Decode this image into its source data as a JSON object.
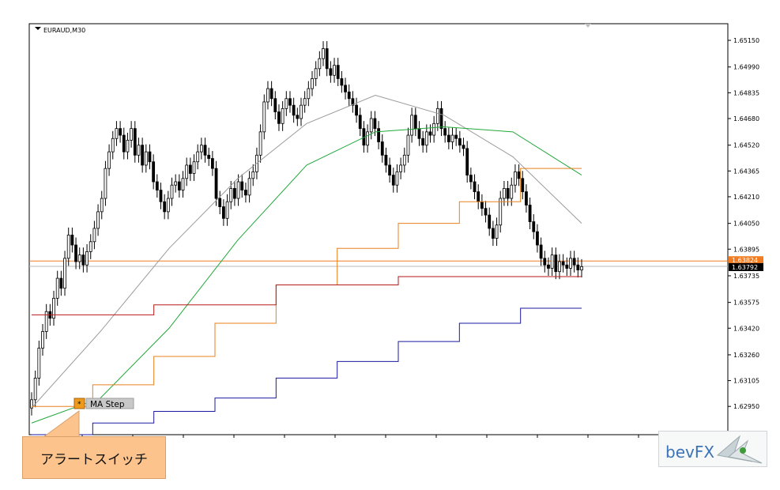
{
  "chart_data": {
    "type": "candlestick",
    "symbol": "EURAUD,M30",
    "y_ticks": [
      "1.65150",
      "1.64990",
      "1.64835",
      "1.64680",
      "1.64520",
      "1.64365",
      "1.64210",
      "1.64050",
      "1.63895",
      "1.63735",
      "1.63575",
      "1.63420",
      "1.63260",
      "1.63105",
      "1.62950"
    ],
    "ylim": [
      1.6278,
      1.6525
    ],
    "price_labels": [
      {
        "text": "1.63824",
        "value": 1.63824,
        "color": "#f47c20"
      },
      {
        "text": "1.63792",
        "value": 1.63792,
        "color": "#000000"
      }
    ],
    "candles_close": [
      1.6299,
      1.6312,
      1.633,
      1.634,
      1.6352,
      1.6348,
      1.636,
      1.6372,
      1.6366,
      1.6384,
      1.6398,
      1.6392,
      1.6382,
      1.6386,
      1.638,
      1.6388,
      1.6394,
      1.6402,
      1.6412,
      1.642,
      1.6438,
      1.6448,
      1.6456,
      1.6462,
      1.6458,
      1.6448,
      1.6455,
      1.6462,
      1.6446,
      1.6452,
      1.644,
      1.6448,
      1.6442,
      1.643,
      1.6425,
      1.6418,
      1.6412,
      1.642,
      1.6428,
      1.643,
      1.6425,
      1.6432,
      1.644,
      1.6435,
      1.6442,
      1.6448,
      1.6452,
      1.6446,
      1.6444,
      1.6438,
      1.642,
      1.6415,
      1.6408,
      1.6418,
      1.6426,
      1.642,
      1.643,
      1.6425,
      1.6422,
      1.6432,
      1.6436,
      1.6446,
      1.646,
      1.6478,
      1.6486,
      1.648,
      1.6472,
      1.6465,
      1.6474,
      1.648,
      1.6476,
      1.647,
      1.6468,
      1.6476,
      1.648,
      1.6486,
      1.6492,
      1.6498,
      1.6504,
      1.651,
      1.6498,
      1.6494,
      1.65,
      1.6492,
      1.6488,
      1.6484,
      1.648,
      1.6476,
      1.647,
      1.6462,
      1.6452,
      1.646,
      1.6468,
      1.6462,
      1.6454,
      1.6446,
      1.644,
      1.6434,
      1.6428,
      1.6436,
      1.644,
      1.6446,
      1.6458,
      1.647,
      1.6462,
      1.6456,
      1.6452,
      1.646,
      1.6458,
      1.6465,
      1.6474,
      1.6462,
      1.6458,
      1.6454,
      1.6458,
      1.6456,
      1.6452,
      1.645,
      1.6434,
      1.643,
      1.6424,
      1.6418,
      1.6414,
      1.641,
      1.6402,
      1.6396,
      1.6404,
      1.642,
      1.6426,
      1.642,
      1.6428,
      1.6436,
      1.6432,
      1.6424,
      1.6416,
      1.6406,
      1.64,
      1.6392,
      1.6384,
      1.638,
      1.6378,
      1.6386,
      1.6376,
      1.6382,
      1.638,
      1.6378,
      1.6384,
      1.638,
      1.6377,
      1.6379
    ],
    "ma_lines": [
      {
        "color": "#9a9a9a",
        "values": [
          1.6294,
          1.634,
          1.639,
          1.6432,
          1.6465,
          1.6482,
          1.647,
          1.6445,
          1.6405
        ]
      },
      {
        "color": "#22a83a",
        "values": [
          1.6285,
          1.63,
          1.6342,
          1.6395,
          1.644,
          1.646,
          1.6463,
          1.646,
          1.6434
        ]
      }
    ],
    "step_lines": [
      {
        "color": "#e8801c",
        "values": [
          1.6295,
          1.6308,
          1.6325,
          1.6345,
          1.6368,
          1.639,
          1.6405,
          1.6418,
          1.6438
        ]
      },
      {
        "color": "#b51a1a",
        "values": [
          1.635,
          1.635,
          1.6356,
          1.6356,
          1.6368,
          1.6368,
          1.6373,
          1.6373,
          1.6373
        ]
      },
      {
        "color": "#1a1aa0",
        "values": [
          1.6278,
          1.6285,
          1.6292,
          1.63,
          1.6312,
          1.6322,
          1.6334,
          1.6345,
          1.6354
        ]
      }
    ],
    "horizontal_levels": [
      {
        "value": 1.63824,
        "color": "#f47c20"
      },
      {
        "value": 1.63792,
        "color": "#b8b8b8"
      }
    ]
  },
  "indicator_label": "MA Step",
  "alert_icon": "asterisk-icon",
  "callout": "アラートスイッチ",
  "logo": "bevFX",
  "colors": {
    "callout_bg": "#fcc38c",
    "indicator_bg": "#c8c8c8",
    "alert_bg": "#f09a1a",
    "logo_text": "#3b73b6"
  }
}
